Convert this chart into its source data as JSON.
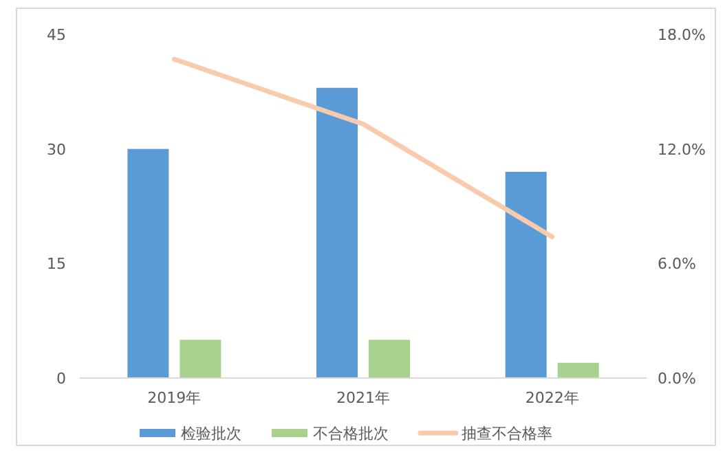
{
  "chart_data": {
    "type": "bar",
    "categories": [
      "2019年",
      "2021年",
      "2022年"
    ],
    "series": [
      {
        "name": "检验批次",
        "color": "#5b9bd5",
        "values": [
          30,
          38,
          27
        ]
      },
      {
        "name": "不合格批次",
        "color": "#a9d18e",
        "values": [
          5,
          5,
          2
        ]
      },
      {
        "name": "抽查不合格率",
        "type": "line",
        "axis": "y2",
        "color": "#f8cbad",
        "values": [
          16.7,
          13.3,
          7.4
        ]
      }
    ],
    "ylim": [
      0,
      45
    ],
    "yticks": [
      0,
      15,
      30,
      45
    ],
    "y2lim": [
      0,
      18
    ],
    "y2ticks": [
      {
        "value": 0,
        "label": "0.0%"
      },
      {
        "value": 6,
        "label": "6.0%"
      },
      {
        "value": 12,
        "label": "12.0%"
      },
      {
        "value": 18,
        "label": "18.0%"
      }
    ],
    "grid": false,
    "legend": "bottom",
    "marker": "none"
  }
}
